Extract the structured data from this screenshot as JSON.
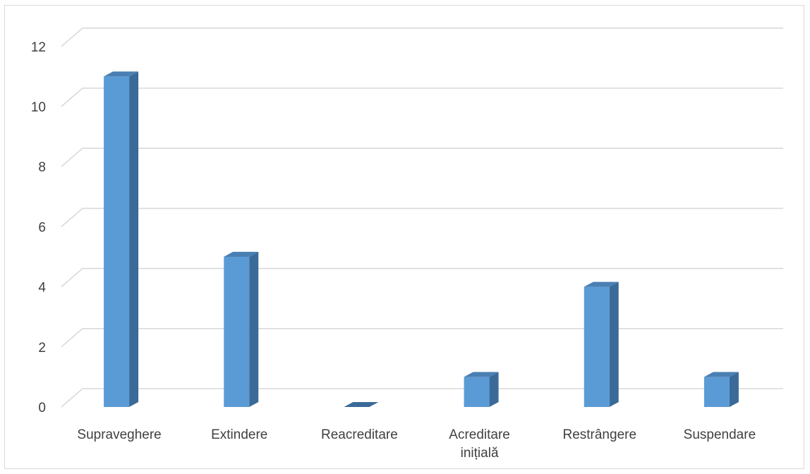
{
  "chart_data": {
    "type": "bar",
    "style": "3d-clustered-column",
    "title": "",
    "xlabel": "",
    "ylabel": "",
    "categories": [
      [
        "Supraveghere"
      ],
      [
        "Extindere"
      ],
      [
        "Reacreditare"
      ],
      [
        "Acreditare",
        "inițială"
      ],
      [
        "Restrângere"
      ],
      [
        "Suspendare"
      ]
    ],
    "values": [
      11,
      5,
      0,
      1,
      4,
      1
    ],
    "ylim": [
      0,
      12
    ],
    "yticks": [
      "0",
      "2",
      "4",
      "6",
      "8",
      "10",
      "12"
    ],
    "grid": true,
    "legend": "none",
    "colors": {
      "bar_front": "#5b9bd5",
      "bar_side": "#3a6a97",
      "bar_top": "#4a7fb3",
      "grid": "#d9d9d9",
      "text": "#404040"
    }
  }
}
